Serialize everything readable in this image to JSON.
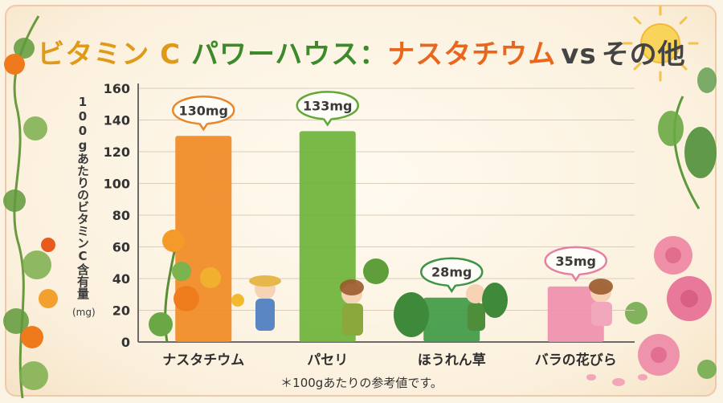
{
  "title": {
    "part1": "ビタミン",
    "part2": "C",
    "part3": "パワーハウス：",
    "part4": "ナスタチウム",
    "part5": "vs",
    "part6": "その他"
  },
  "footnote": "＊100gあたりの参考値です。",
  "chart_data": {
    "type": "bar",
    "categories": [
      "ナスタチウム",
      "パセリ",
      "ほうれん草",
      "バラの花びら"
    ],
    "values": [
      130,
      133,
      28,
      35
    ],
    "data_labels": [
      "130mg",
      "133mg",
      "28mg",
      "35mg"
    ],
    "ylabel": "100gあたりのビタミンC含有量",
    "ylabel_unit": "(mg)",
    "ylim": [
      0,
      160
    ],
    "yticks": [
      0,
      20,
      40,
      60,
      80,
      100,
      120,
      140,
      160
    ],
    "grid": true,
    "bar_colors": [
      "#f08a24",
      "#6cb33a",
      "#3f9a45",
      "#ef8fae"
    ],
    "bubble_colors": [
      "#e9852a",
      "#5fa836",
      "#3e9446",
      "#e57fa2"
    ]
  }
}
